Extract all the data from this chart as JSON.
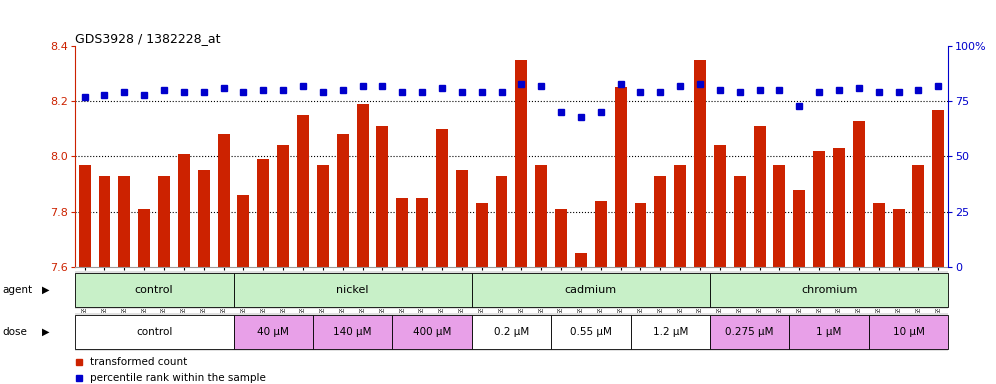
{
  "title": "GDS3928 / 1382228_at",
  "samples": [
    "GSM782280",
    "GSM782281",
    "GSM782291",
    "GSM782292",
    "GSM782302",
    "GSM782303",
    "GSM782313",
    "GSM782314",
    "GSM782282",
    "GSM782293",
    "GSM782304",
    "GSM782315",
    "GSM782283",
    "GSM782294",
    "GSM782305",
    "GSM782316",
    "GSM782284",
    "GSM782295",
    "GSM782306",
    "GSM782317",
    "GSM782288",
    "GSM782299",
    "GSM782310",
    "GSM782321",
    "GSM782289",
    "GSM782300",
    "GSM782311",
    "GSM782322",
    "GSM782290",
    "GSM782301",
    "GSM782312",
    "GSM782323",
    "GSM782285",
    "GSM782296",
    "GSM782307",
    "GSM782318",
    "GSM782286",
    "GSM782297",
    "GSM782308",
    "GSM782319",
    "GSM782287",
    "GSM782298",
    "GSM782309",
    "GSM782320"
  ],
  "bar_values": [
    7.97,
    7.93,
    7.93,
    7.81,
    7.93,
    8.01,
    7.95,
    8.08,
    7.86,
    7.99,
    8.04,
    8.15,
    7.97,
    8.08,
    8.19,
    8.11,
    7.85,
    7.85,
    8.1,
    7.95,
    7.83,
    7.93,
    8.35,
    7.97,
    7.81,
    7.65,
    7.84,
    8.25,
    7.83,
    7.93,
    7.97,
    8.35,
    8.04,
    7.93,
    8.11,
    7.97,
    7.88,
    8.02,
    8.03,
    8.13,
    7.83,
    7.81,
    7.97,
    8.17
  ],
  "percentile_values": [
    77,
    78,
    79,
    78,
    80,
    79,
    79,
    81,
    79,
    80,
    80,
    82,
    79,
    80,
    82,
    82,
    79,
    79,
    81,
    79,
    79,
    79,
    83,
    82,
    70,
    68,
    70,
    83,
    79,
    79,
    82,
    83,
    80,
    79,
    80,
    80,
    73,
    79,
    80,
    81,
    79,
    79,
    80,
    82
  ],
  "agent_groups": [
    {
      "label": "control",
      "start": 0,
      "end": 8,
      "color": "#c8f0c8"
    },
    {
      "label": "nickel",
      "start": 8,
      "end": 20,
      "color": "#c8f0c8"
    },
    {
      "label": "cadmium",
      "start": 20,
      "end": 32,
      "color": "#c8f0c8"
    },
    {
      "label": "chromium",
      "start": 32,
      "end": 44,
      "color": "#c8f0c8"
    }
  ],
  "dose_groups": [
    {
      "label": "control",
      "start": 0,
      "end": 8,
      "color": "#ffffff"
    },
    {
      "label": "40 μM",
      "start": 8,
      "end": 12,
      "color": "#e8a0e8"
    },
    {
      "label": "140 μM",
      "start": 12,
      "end": 16,
      "color": "#e8a0e8"
    },
    {
      "label": "400 μM",
      "start": 16,
      "end": 20,
      "color": "#e8a0e8"
    },
    {
      "label": "0.2 μM",
      "start": 20,
      "end": 24,
      "color": "#ffffff"
    },
    {
      "label": "0.55 μM",
      "start": 24,
      "end": 28,
      "color": "#ffffff"
    },
    {
      "label": "1.2 μM",
      "start": 28,
      "end": 32,
      "color": "#ffffff"
    },
    {
      "label": "0.275 μM",
      "start": 32,
      "end": 36,
      "color": "#e8a0e8"
    },
    {
      "label": "1 μM",
      "start": 36,
      "end": 40,
      "color": "#e8a0e8"
    },
    {
      "label": "10 μM",
      "start": 40,
      "end": 44,
      "color": "#e8a0e8"
    }
  ],
  "bar_color": "#cc2200",
  "dot_color": "#0000cc",
  "ylim_left": [
    7.6,
    8.4
  ],
  "ylim_right": [
    0,
    100
  ],
  "yticks_left": [
    7.6,
    7.8,
    8.0,
    8.2,
    8.4
  ],
  "yticks_right": [
    0,
    25,
    50,
    75,
    100
  ],
  "grid_values": [
    7.8,
    8.0,
    8.2
  ],
  "bg_color": "#ffffff"
}
